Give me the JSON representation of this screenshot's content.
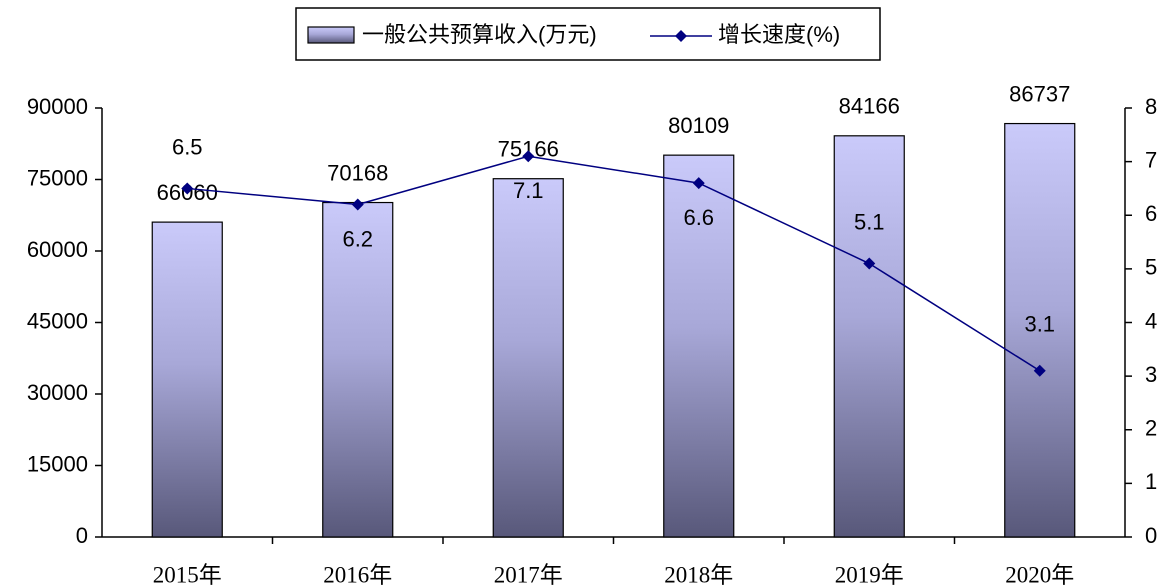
{
  "chart_data": {
    "type": "bar",
    "categories": [
      "2015年",
      "2016年",
      "2017年",
      "2018年",
      "2019年",
      "2020年"
    ],
    "series": [
      {
        "name": "一般公共预算收入(万元)",
        "type": "bar",
        "color": "#c8c8f8",
        "values": [
          66060,
          70168,
          75166,
          80109,
          84166,
          86737
        ]
      },
      {
        "name": "增长速度(%)",
        "type": "line",
        "axis": "y2",
        "color": "#000080",
        "values": [
          6.5,
          6.2,
          7.1,
          6.6,
          5.1,
          3.1
        ]
      }
    ],
    "ylim": [
      0,
      90000
    ],
    "yticks": [
      0,
      15000,
      30000,
      45000,
      60000,
      75000,
      90000
    ],
    "y2lim": [
      0,
      8
    ],
    "y2ticks": [
      0,
      1,
      2,
      3,
      4,
      5,
      6,
      7,
      8
    ],
    "legend": "top"
  }
}
